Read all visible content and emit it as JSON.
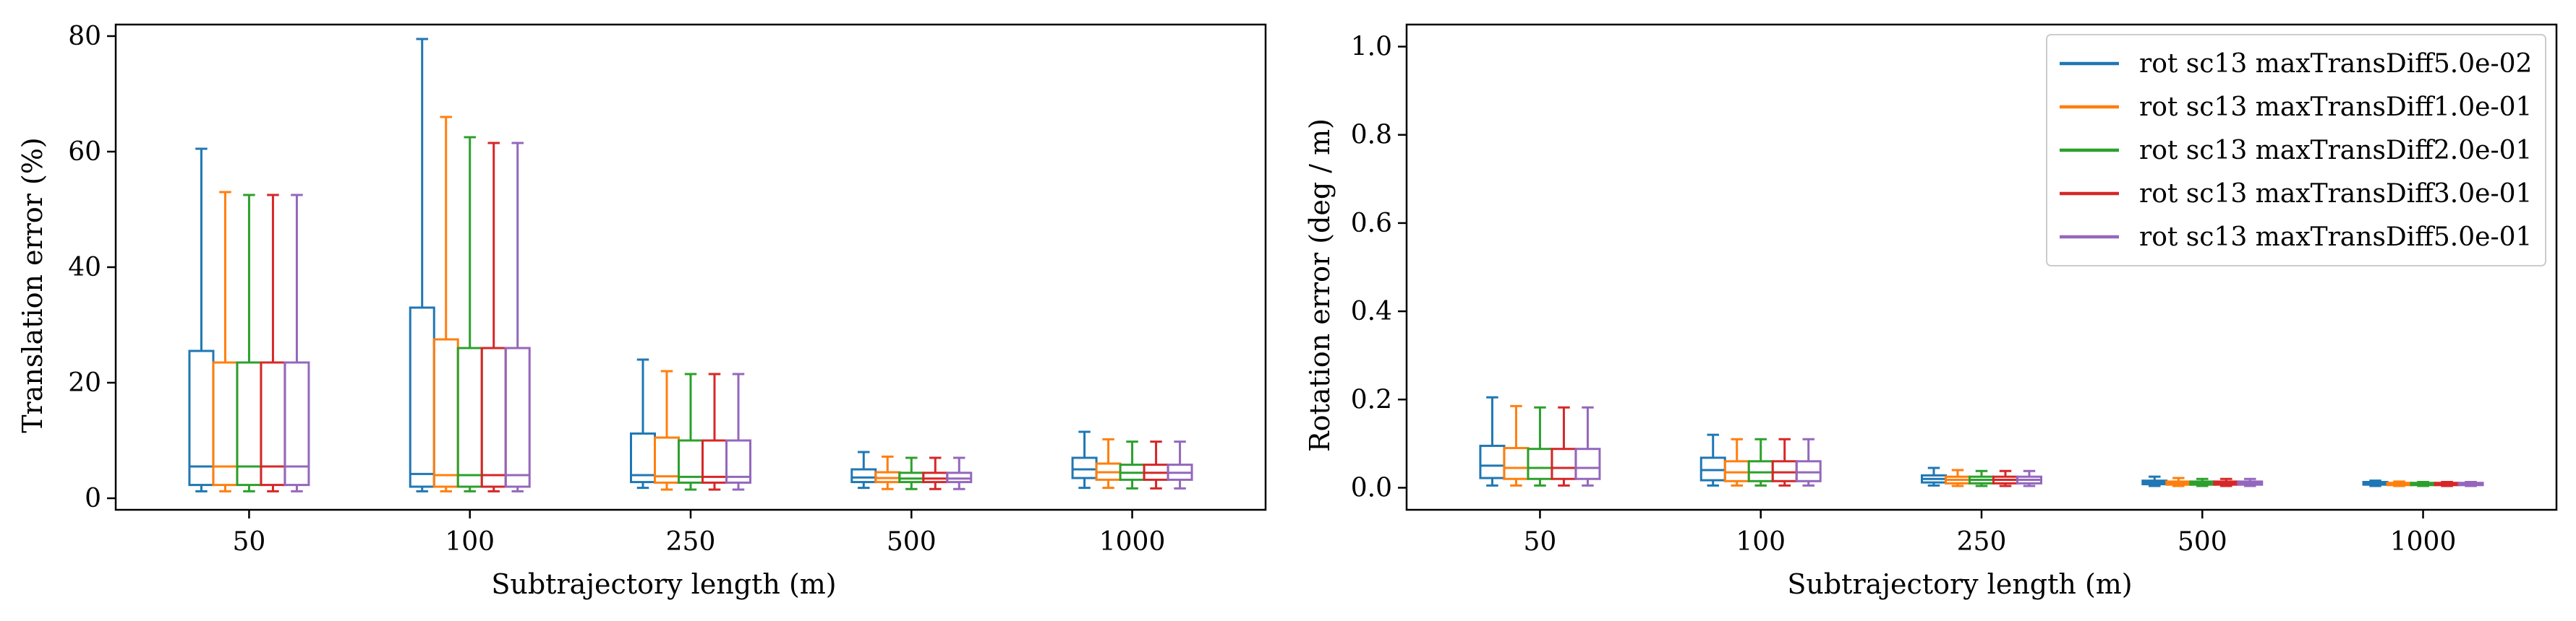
{
  "chart_data": [
    {
      "type": "box",
      "xlabel": "Subtrajectory length (m)",
      "ylabel": "Translation error (%)",
      "categories": [
        "50",
        "100",
        "250",
        "500",
        "1000"
      ],
      "ylim": [
        -2,
        82
      ],
      "yticks": [
        0,
        20,
        40,
        60,
        80
      ],
      "grid": false,
      "series": [
        {
          "name": "rot sc13 maxTransDiff5.0e-02",
          "color": "#1f77b4",
          "boxes": [
            {
              "whislo": 1.2,
              "q1": 2.3,
              "med": 5.5,
              "q3": 25.5,
              "whishi": 60.5
            },
            {
              "whislo": 1.2,
              "q1": 2.0,
              "med": 4.2,
              "q3": 33.0,
              "whishi": 79.5
            },
            {
              "whislo": 1.8,
              "q1": 2.8,
              "med": 4.0,
              "q3": 11.2,
              "whishi": 24.0
            },
            {
              "whislo": 1.8,
              "q1": 2.8,
              "med": 3.6,
              "q3": 5.0,
              "whishi": 8.0
            },
            {
              "whislo": 1.8,
              "q1": 3.5,
              "med": 5.0,
              "q3": 7.0,
              "whishi": 11.5
            }
          ]
        },
        {
          "name": "rot sc13 maxTransDiff1.0e-01",
          "color": "#ff7f0e",
          "boxes": [
            {
              "whislo": 1.2,
              "q1": 2.3,
              "med": 5.5,
              "q3": 23.5,
              "whishi": 53.0
            },
            {
              "whislo": 1.2,
              "q1": 2.0,
              "med": 4.0,
              "q3": 27.5,
              "whishi": 66.0
            },
            {
              "whislo": 1.5,
              "q1": 2.7,
              "med": 3.8,
              "q3": 10.5,
              "whishi": 22.0
            },
            {
              "whislo": 1.6,
              "q1": 2.8,
              "med": 3.5,
              "q3": 4.5,
              "whishi": 7.2
            },
            {
              "whislo": 1.8,
              "q1": 3.2,
              "med": 4.5,
              "q3": 6.0,
              "whishi": 10.2
            }
          ]
        },
        {
          "name": "rot sc13 maxTransDiff2.0e-01",
          "color": "#2ca02c",
          "boxes": [
            {
              "whislo": 1.2,
              "q1": 2.3,
              "med": 5.5,
              "q3": 23.5,
              "whishi": 52.5
            },
            {
              "whislo": 1.2,
              "q1": 2.0,
              "med": 4.0,
              "q3": 26.0,
              "whishi": 62.5
            },
            {
              "whislo": 1.5,
              "q1": 2.7,
              "med": 3.7,
              "q3": 10.0,
              "whishi": 21.5
            },
            {
              "whislo": 1.6,
              "q1": 2.8,
              "med": 3.4,
              "q3": 4.4,
              "whishi": 7.0
            },
            {
              "whislo": 1.7,
              "q1": 3.2,
              "med": 4.4,
              "q3": 5.8,
              "whishi": 9.8
            }
          ]
        },
        {
          "name": "rot sc13 maxTransDiff3.0e-01",
          "color": "#d62728",
          "boxes": [
            {
              "whislo": 1.2,
              "q1": 2.3,
              "med": 5.5,
              "q3": 23.5,
              "whishi": 52.5
            },
            {
              "whislo": 1.2,
              "q1": 2.0,
              "med": 4.0,
              "q3": 26.0,
              "whishi": 61.5
            },
            {
              "whislo": 1.5,
              "q1": 2.7,
              "med": 3.7,
              "q3": 10.0,
              "whishi": 21.5
            },
            {
              "whislo": 1.6,
              "q1": 2.8,
              "med": 3.4,
              "q3": 4.4,
              "whishi": 7.0
            },
            {
              "whislo": 1.7,
              "q1": 3.2,
              "med": 4.4,
              "q3": 5.8,
              "whishi": 9.8
            }
          ]
        },
        {
          "name": "rot sc13 maxTransDiff5.0e-01",
          "color": "#9467bd",
          "boxes": [
            {
              "whislo": 1.2,
              "q1": 2.3,
              "med": 5.5,
              "q3": 23.5,
              "whishi": 52.5
            },
            {
              "whislo": 1.2,
              "q1": 2.0,
              "med": 4.0,
              "q3": 26.0,
              "whishi": 61.5
            },
            {
              "whislo": 1.5,
              "q1": 2.7,
              "med": 3.7,
              "q3": 10.0,
              "whishi": 21.5
            },
            {
              "whislo": 1.6,
              "q1": 2.8,
              "med": 3.4,
              "q3": 4.4,
              "whishi": 7.0
            },
            {
              "whislo": 1.7,
              "q1": 3.2,
              "med": 4.4,
              "q3": 5.8,
              "whishi": 9.8
            }
          ]
        }
      ]
    },
    {
      "type": "box",
      "xlabel": "Subtrajectory length (m)",
      "ylabel": "Rotation error (deg / m)",
      "categories": [
        "50",
        "100",
        "250",
        "500",
        "1000"
      ],
      "ylim": [
        -0.05,
        1.05
      ],
      "yticks": [
        0.0,
        0.2,
        0.4,
        0.6,
        0.8,
        1.0
      ],
      "ytick_labels": [
        "0.0",
        "0.2",
        "0.4",
        "0.6",
        "0.8",
        "1.0"
      ],
      "grid": false,
      "legend_position": "top-right",
      "series": [
        {
          "name": "rot sc13 maxTransDiff5.0e-02",
          "color": "#1f77b4",
          "boxes": [
            {
              "whislo": 0.005,
              "q1": 0.022,
              "med": 0.05,
              "q3": 0.095,
              "whishi": 0.205
            },
            {
              "whislo": 0.005,
              "q1": 0.017,
              "med": 0.04,
              "q3": 0.068,
              "whishi": 0.12
            },
            {
              "whislo": 0.005,
              "q1": 0.012,
              "med": 0.02,
              "q3": 0.028,
              "whishi": 0.045
            },
            {
              "whislo": 0.004,
              "q1": 0.008,
              "med": 0.012,
              "q3": 0.016,
              "whishi": 0.025
            },
            {
              "whislo": 0.004,
              "q1": 0.007,
              "med": 0.01,
              "q3": 0.013,
              "whishi": 0.016
            }
          ]
        },
        {
          "name": "rot sc13 maxTransDiff1.0e-01",
          "color": "#ff7f0e",
          "boxes": [
            {
              "whislo": 0.005,
              "q1": 0.02,
              "med": 0.045,
              "q3": 0.09,
              "whishi": 0.185
            },
            {
              "whislo": 0.005,
              "q1": 0.015,
              "med": 0.035,
              "q3": 0.06,
              "whishi": 0.11
            },
            {
              "whislo": 0.004,
              "q1": 0.01,
              "med": 0.018,
              "q3": 0.025,
              "whishi": 0.04
            },
            {
              "whislo": 0.004,
              "q1": 0.007,
              "med": 0.011,
              "q3": 0.014,
              "whishi": 0.022
            },
            {
              "whislo": 0.004,
              "q1": 0.006,
              "med": 0.009,
              "q3": 0.011,
              "whishi": 0.014
            }
          ]
        },
        {
          "name": "rot sc13 maxTransDiff2.0e-01",
          "color": "#2ca02c",
          "boxes": [
            {
              "whislo": 0.005,
              "q1": 0.02,
              "med": 0.045,
              "q3": 0.088,
              "whishi": 0.182
            },
            {
              "whislo": 0.005,
              "q1": 0.015,
              "med": 0.035,
              "q3": 0.06,
              "whishi": 0.11
            },
            {
              "whislo": 0.004,
              "q1": 0.01,
              "med": 0.018,
              "q3": 0.025,
              "whishi": 0.038
            },
            {
              "whislo": 0.004,
              "q1": 0.007,
              "med": 0.011,
              "q3": 0.014,
              "whishi": 0.02
            },
            {
              "whislo": 0.004,
              "q1": 0.006,
              "med": 0.009,
              "q3": 0.011,
              "whishi": 0.013
            }
          ]
        },
        {
          "name": "rot sc13 maxTransDiff3.0e-01",
          "color": "#d62728",
          "boxes": [
            {
              "whislo": 0.005,
              "q1": 0.02,
              "med": 0.045,
              "q3": 0.088,
              "whishi": 0.182
            },
            {
              "whislo": 0.005,
              "q1": 0.015,
              "med": 0.035,
              "q3": 0.06,
              "whishi": 0.11
            },
            {
              "whislo": 0.004,
              "q1": 0.01,
              "med": 0.018,
              "q3": 0.025,
              "whishi": 0.038
            },
            {
              "whislo": 0.004,
              "q1": 0.007,
              "med": 0.011,
              "q3": 0.014,
              "whishi": 0.02
            },
            {
              "whislo": 0.004,
              "q1": 0.006,
              "med": 0.009,
              "q3": 0.011,
              "whishi": 0.013
            }
          ]
        },
        {
          "name": "rot sc13 maxTransDiff5.0e-01",
          "color": "#9467bd",
          "boxes": [
            {
              "whislo": 0.005,
              "q1": 0.02,
              "med": 0.045,
              "q3": 0.088,
              "whishi": 0.182
            },
            {
              "whislo": 0.005,
              "q1": 0.015,
              "med": 0.035,
              "q3": 0.06,
              "whishi": 0.11
            },
            {
              "whislo": 0.004,
              "q1": 0.01,
              "med": 0.018,
              "q3": 0.025,
              "whishi": 0.038
            },
            {
              "whislo": 0.004,
              "q1": 0.007,
              "med": 0.011,
              "q3": 0.014,
              "whishi": 0.02
            },
            {
              "whislo": 0.004,
              "q1": 0.006,
              "med": 0.009,
              "q3": 0.011,
              "whishi": 0.013
            }
          ]
        }
      ]
    }
  ]
}
